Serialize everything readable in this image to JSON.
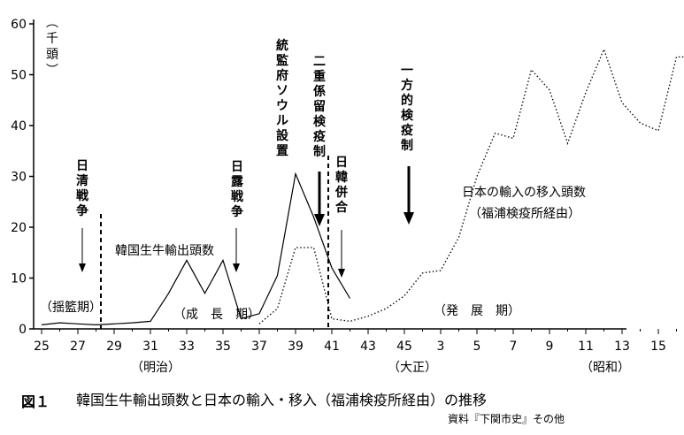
{
  "chart_data": {
    "type": "line",
    "title": "韓国生牛輸出頭数と日本の輸入・移入（福浦検疫所経由）の推移",
    "figure_label": "図１",
    "source": "資料『下関市史』その他",
    "unit_label": "（千頭）",
    "ylim": [
      0,
      60
    ],
    "yticks": [
      "0",
      "10",
      "20",
      "30",
      "40",
      "50",
      "60"
    ],
    "xticks": [
      "25",
      "27",
      "29",
      "31",
      "33",
      "35",
      "37",
      "39",
      "41",
      "43",
      "45",
      "3",
      "5",
      "7",
      "9",
      "11",
      "13",
      "15",
      "3"
    ],
    "eras": [
      "（明治）",
      "（大正）",
      "（昭和）"
    ],
    "periods": [
      "（揺籃期）",
      "（成　長　期）",
      "（発　展　期）"
    ],
    "events": [
      "日清戦争",
      "日露戦争",
      "統監府ソウル設置",
      "二重係留検疫制",
      "日韓併合",
      "一方的検疫制"
    ],
    "series": [
      {
        "name": "韓国生牛輸出頭数",
        "style": "solid",
        "x": [
          1892,
          1893,
          1894,
          1895,
          1896,
          1897,
          1898,
          1899,
          1900,
          1901,
          1902,
          1903,
          1904,
          1905,
          1906,
          1907,
          1908,
          1909
        ],
        "values": [
          0.8,
          1.2,
          1.0,
          0.8,
          1.0,
          1.2,
          1.5,
          7.0,
          13.5,
          7.0,
          13.5,
          2.0,
          3.0,
          10.5,
          30.5,
          22.0,
          12.0,
          6.0
        ]
      },
      {
        "name": "日本の輸入の移入頭数（福浦検疫所経由）",
        "style": "dotted",
        "x": [
          1904,
          1905,
          1906,
          1907,
          1908,
          1909,
          1910,
          1911,
          1912,
          1913,
          1914,
          1915,
          1916,
          1917,
          1918,
          1919,
          1920,
          1921,
          1922,
          1923,
          1924,
          1925,
          1926,
          1927,
          1928
        ],
        "values": [
          1.0,
          4.0,
          16.0,
          16.0,
          2.0,
          1.5,
          2.5,
          4.0,
          6.5,
          11.0,
          11.5,
          18.0,
          30.0,
          38.5,
          37.5,
          51.0,
          47.0,
          36.5,
          46.5,
          55.0,
          44.5,
          40.5,
          39.0,
          53.5,
          53.5
        ]
      }
    ],
    "series_labels": {
      "korea": "韓国生牛輸出頭数",
      "japan_line1": "日本の輸入の移入頭数",
      "japan_line2": "（福浦検疫所経由）"
    }
  }
}
